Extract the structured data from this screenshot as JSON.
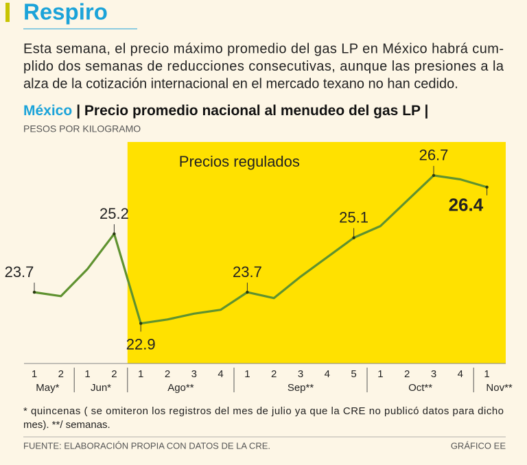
{
  "chart_data": {
    "type": "line",
    "title": "Respiro",
    "intro": [
      "Esta semana, el precio máximo promedio del gas LP en México habrá cum-",
      "plido dos semanas de reducciones consecutivas, aunque las presiones a la",
      "alza de la cotización internacional en el mercado texano no han cedido."
    ],
    "chart_title_prefix": "México",
    "chart_title": "| Precio promedio nacional al menudeo del gas LP |",
    "y_label": "PESOS POR KILOGRAMO",
    "shade_label": "Precios regulados",
    "shade_color": "#ffe100",
    "groups": [
      {
        "name": "May*",
        "categories": [
          "1",
          "2"
        ],
        "shaded": false
      },
      {
        "name": "Jun*",
        "categories": [
          "1",
          "2"
        ],
        "shaded": false
      },
      {
        "name": "Ago**",
        "categories": [
          "1",
          "2",
          "3",
          "4"
        ],
        "shaded": true
      },
      {
        "name": "Sep**",
        "categories": [
          "1",
          "2",
          "3",
          "4",
          "5"
        ],
        "shaded": true
      },
      {
        "name": "Oct**",
        "categories": [
          "1",
          "2",
          "3",
          "4"
        ],
        "shaded": true
      },
      {
        "name": "Nov**",
        "categories": [
          "1"
        ],
        "shaded": true
      }
    ],
    "values": [
      23.7,
      23.6,
      24.3,
      25.2,
      22.9,
      23.0,
      23.15,
      23.25,
      23.7,
      23.55,
      24.1,
      24.6,
      25.1,
      25.4,
      26.05,
      26.7,
      26.6,
      26.4
    ],
    "value_labels": [
      "23.7",
      null,
      null,
      "25.2",
      "22.9",
      null,
      null,
      null,
      "23.7",
      null,
      null,
      null,
      "25.1",
      null,
      null,
      "26.7",
      null,
      "26.4"
    ],
    "color": "#5f9230",
    "ylim": [
      21.87,
      27.56
    ],
    "footnote": [
      "* quincenas ( se omiteron los registros del mes de julio ya que la CRE no publicó datos para dicho",
      "mes). **/ semanas."
    ],
    "source": "FUENTE: ELABORACIÓN PROPIA CON DATOS DE LA CRE.",
    "credit": "GRÁFICO EE"
  }
}
